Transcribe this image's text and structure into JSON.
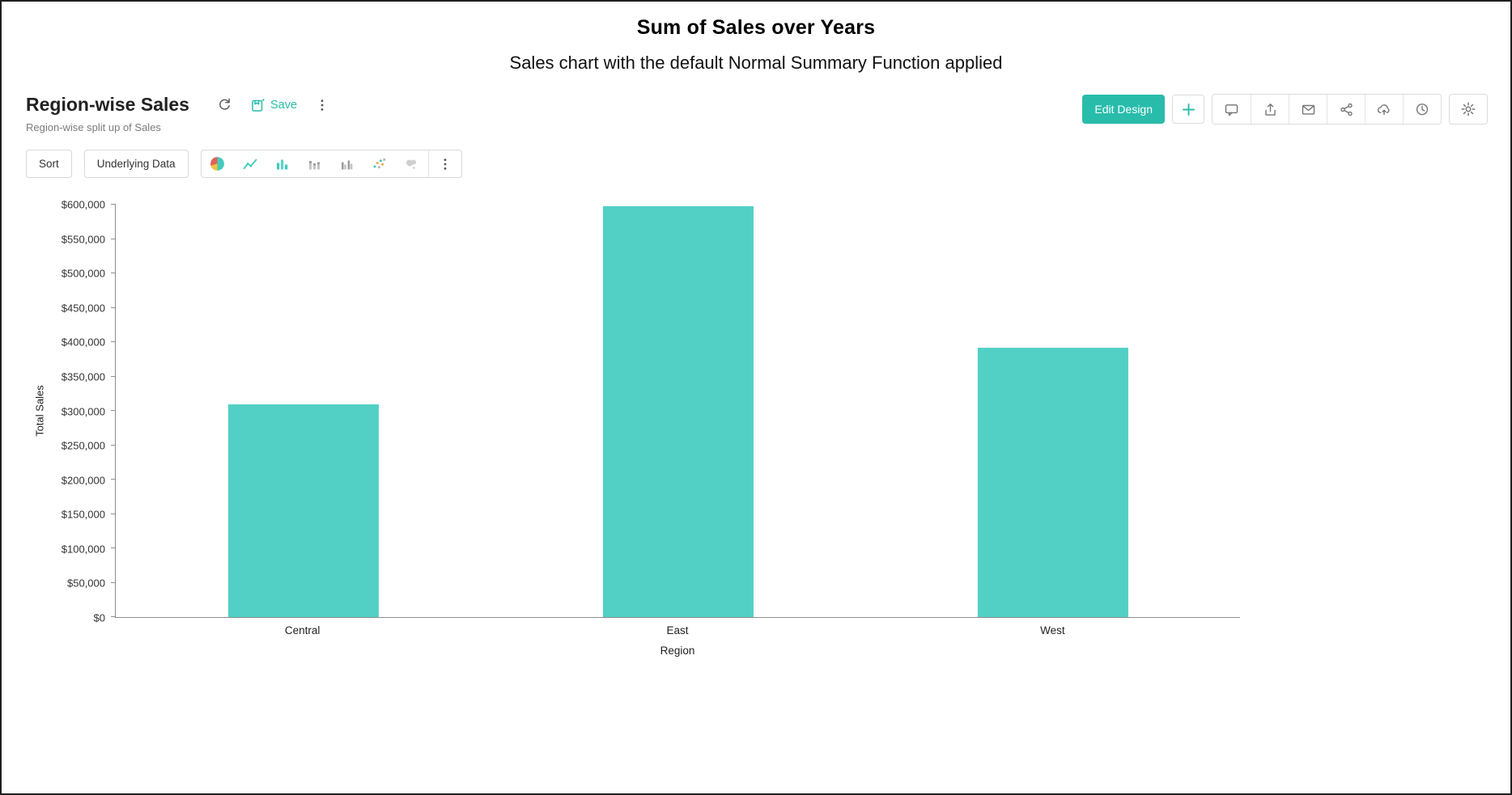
{
  "page": {
    "title": "Sum of Sales over Years",
    "subtitle": "Sales chart with the default Normal Summary Function applied"
  },
  "report": {
    "title": "Region-wise Sales",
    "subtitle": "Region-wise split up of Sales"
  },
  "header_actions": {
    "save_label": "Save",
    "edit_design_label": "Edit Design",
    "icon_buttons": [
      "refresh-icon",
      "save-icon",
      "more-vertical-icon",
      "add-icon",
      "comment-icon",
      "export-icon",
      "email-icon",
      "share-icon",
      "cloud-upload-icon",
      "history-icon",
      "settings-gear-icon"
    ]
  },
  "chart_toolbar": {
    "sort_label": "Sort",
    "underlying_data_label": "Underlying Data",
    "chart_type_icons": [
      "pie-chart-icon",
      "line-chart-icon",
      "bar-chart-icon",
      "stacked-bar-chart-icon",
      "grouped-bar-chart-icon",
      "scatter-chart-icon",
      "map-chart-icon",
      "more-vertical-icon"
    ]
  },
  "colors": {
    "accent_teal": "#29bcab",
    "bar_teal": "#52d0c5",
    "icon_gray": "#767676",
    "border_gray": "#dcdcdc"
  },
  "chart_data": {
    "type": "bar",
    "title": "Region-wise Sales",
    "categories": [
      "Central",
      "East",
      "West"
    ],
    "values": [
      310000,
      598000,
      392000
    ],
    "xlabel": "Region",
    "ylabel": "Total Sales",
    "ylim": [
      0,
      600000
    ],
    "ytick_step": 50000,
    "ytick_labels": [
      "$0",
      "$50,000",
      "$100,000",
      "$150,000",
      "$200,000",
      "$250,000",
      "$300,000",
      "$350,000",
      "$400,000",
      "$450,000",
      "$500,000",
      "$550,000",
      "$600,000"
    ],
    "grid": false,
    "legend": "none",
    "bar_color": "#52d0c5"
  }
}
